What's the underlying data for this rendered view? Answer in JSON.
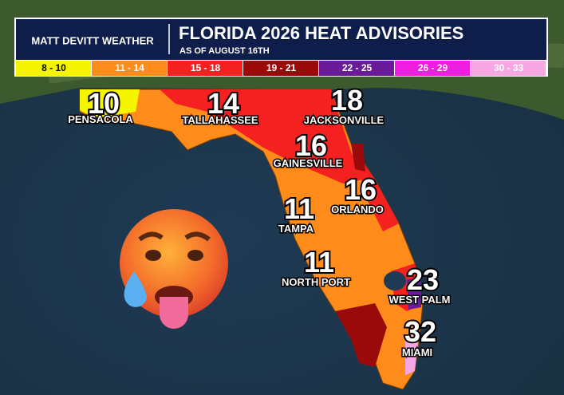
{
  "header": {
    "brand": "MATT DEVITT WEATHER",
    "title": "FLORIDA 2026 HEAT ADVISORIES",
    "subtitle": "AS OF AUGUST 16TH"
  },
  "legend": [
    {
      "label": "8 - 10",
      "color": "#f5f500"
    },
    {
      "label": "11 - 14",
      "color": "#ff8c1a"
    },
    {
      "label": "15 - 18",
      "color": "#f52020"
    },
    {
      "label": "19 - 21",
      "color": "#9b0a0a"
    },
    {
      "label": "22 - 25",
      "color": "#6a1b9a"
    },
    {
      "label": "26 - 29",
      "color": "#f01ee0"
    },
    {
      "label": "30 - 33",
      "color": "#f7a8e4"
    }
  ],
  "cities": [
    {
      "name": "PENSACOLA",
      "count": 10
    },
    {
      "name": "TALLAHASSEE",
      "count": 14
    },
    {
      "name": "JACKSONVILLE",
      "count": 18
    },
    {
      "name": "GAINESVILLE",
      "count": 16
    },
    {
      "name": "ORLANDO",
      "count": 16
    },
    {
      "name": "TAMPA",
      "count": 11
    },
    {
      "name": "NORTH PORT",
      "count": 11
    },
    {
      "name": "WEST PALM",
      "count": 23
    },
    {
      "name": "MIAMI",
      "count": 32
    }
  ]
}
